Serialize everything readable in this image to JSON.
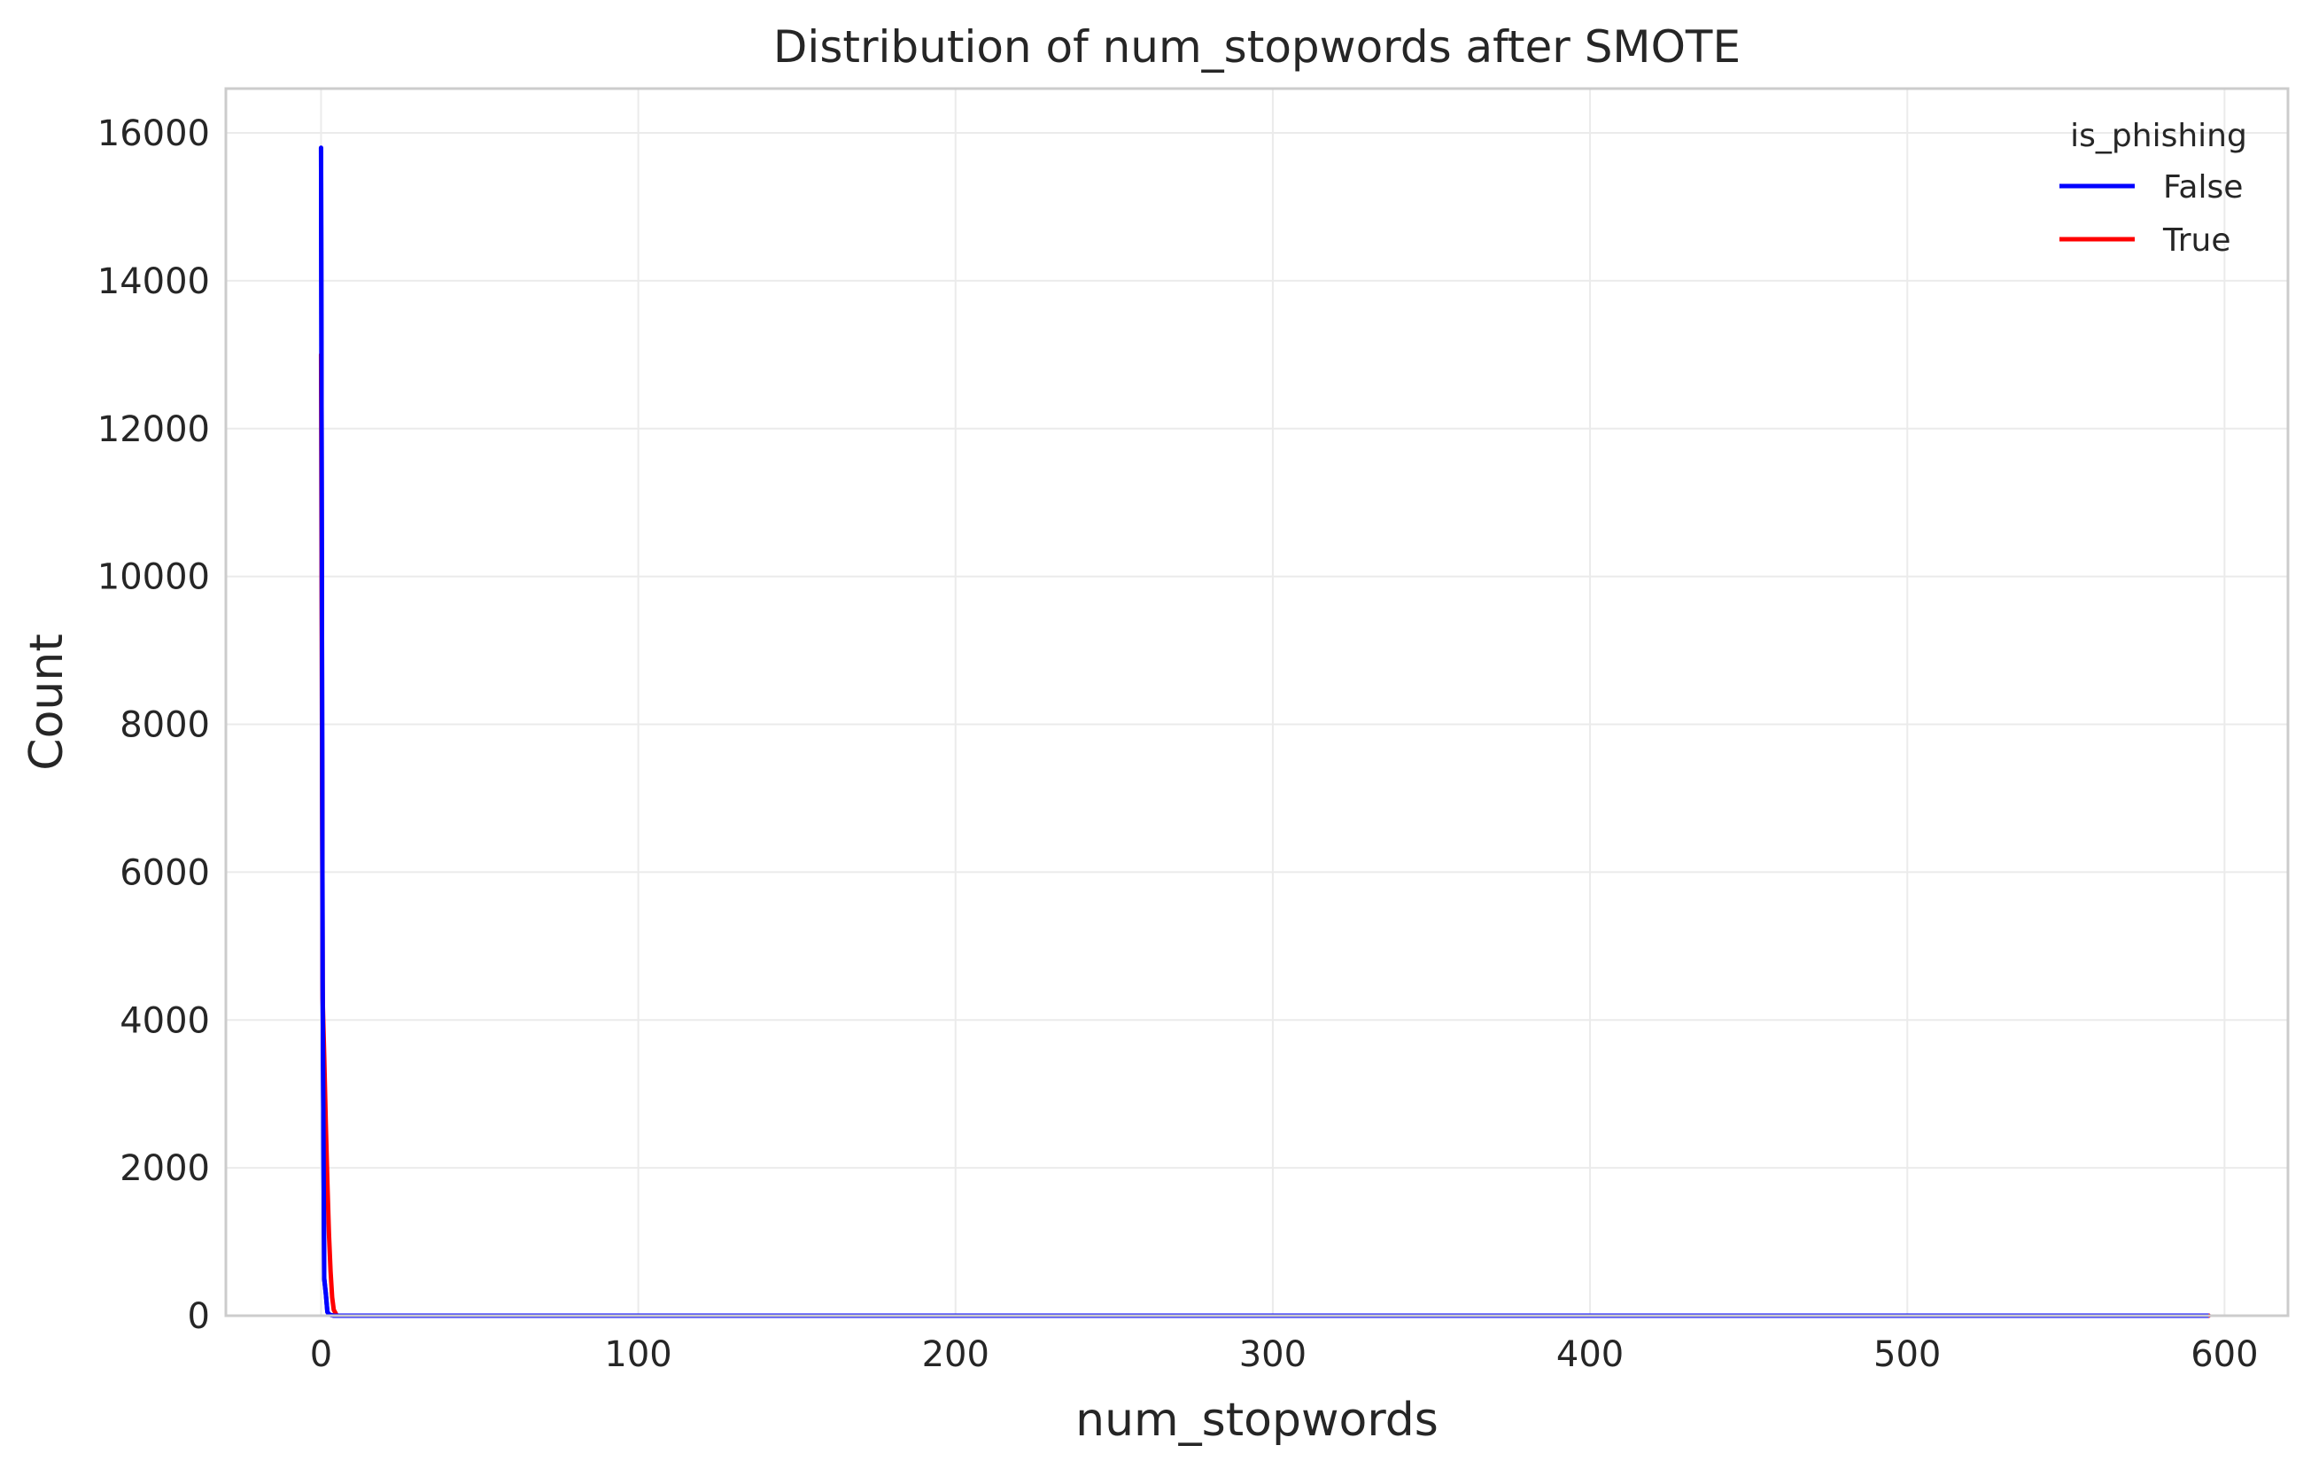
{
  "chart_data": {
    "type": "line",
    "title": "Distribution of num_stopwords after SMOTE",
    "xlabel": "num_stopwords",
    "ylabel": "Count",
    "xlim": [
      -30,
      620
    ],
    "ylim": [
      0,
      16600
    ],
    "xticks": [
      0,
      100,
      200,
      300,
      400,
      500,
      600
    ],
    "yticks": [
      0,
      2000,
      4000,
      6000,
      8000,
      10000,
      12000,
      14000,
      16000
    ],
    "grid": true,
    "legend": {
      "title": "is_phishing",
      "placement": "top-right"
    },
    "series": [
      {
        "name": "False",
        "color": "#0000ff",
        "x": [
          0,
          0.5,
          1,
          1.5,
          2,
          2.5,
          3,
          4,
          6,
          10,
          50,
          100,
          200,
          300,
          400,
          500,
          595
        ],
        "y": [
          15800,
          4500,
          500,
          300,
          50,
          20,
          10,
          0,
          0,
          0,
          0,
          0,
          0,
          0,
          0,
          0,
          0
        ]
      },
      {
        "name": "True",
        "color": "#ff0000",
        "x": [
          0,
          0.5,
          1,
          1.5,
          2,
          2.5,
          3,
          3.5,
          4,
          5,
          10,
          50,
          100,
          200,
          300,
          400,
          500,
          595
        ],
        "y": [
          13000,
          4300,
          3500,
          2600,
          1800,
          1100,
          600,
          250,
          80,
          0,
          0,
          0,
          0,
          0,
          0,
          0,
          0,
          0
        ]
      }
    ]
  }
}
